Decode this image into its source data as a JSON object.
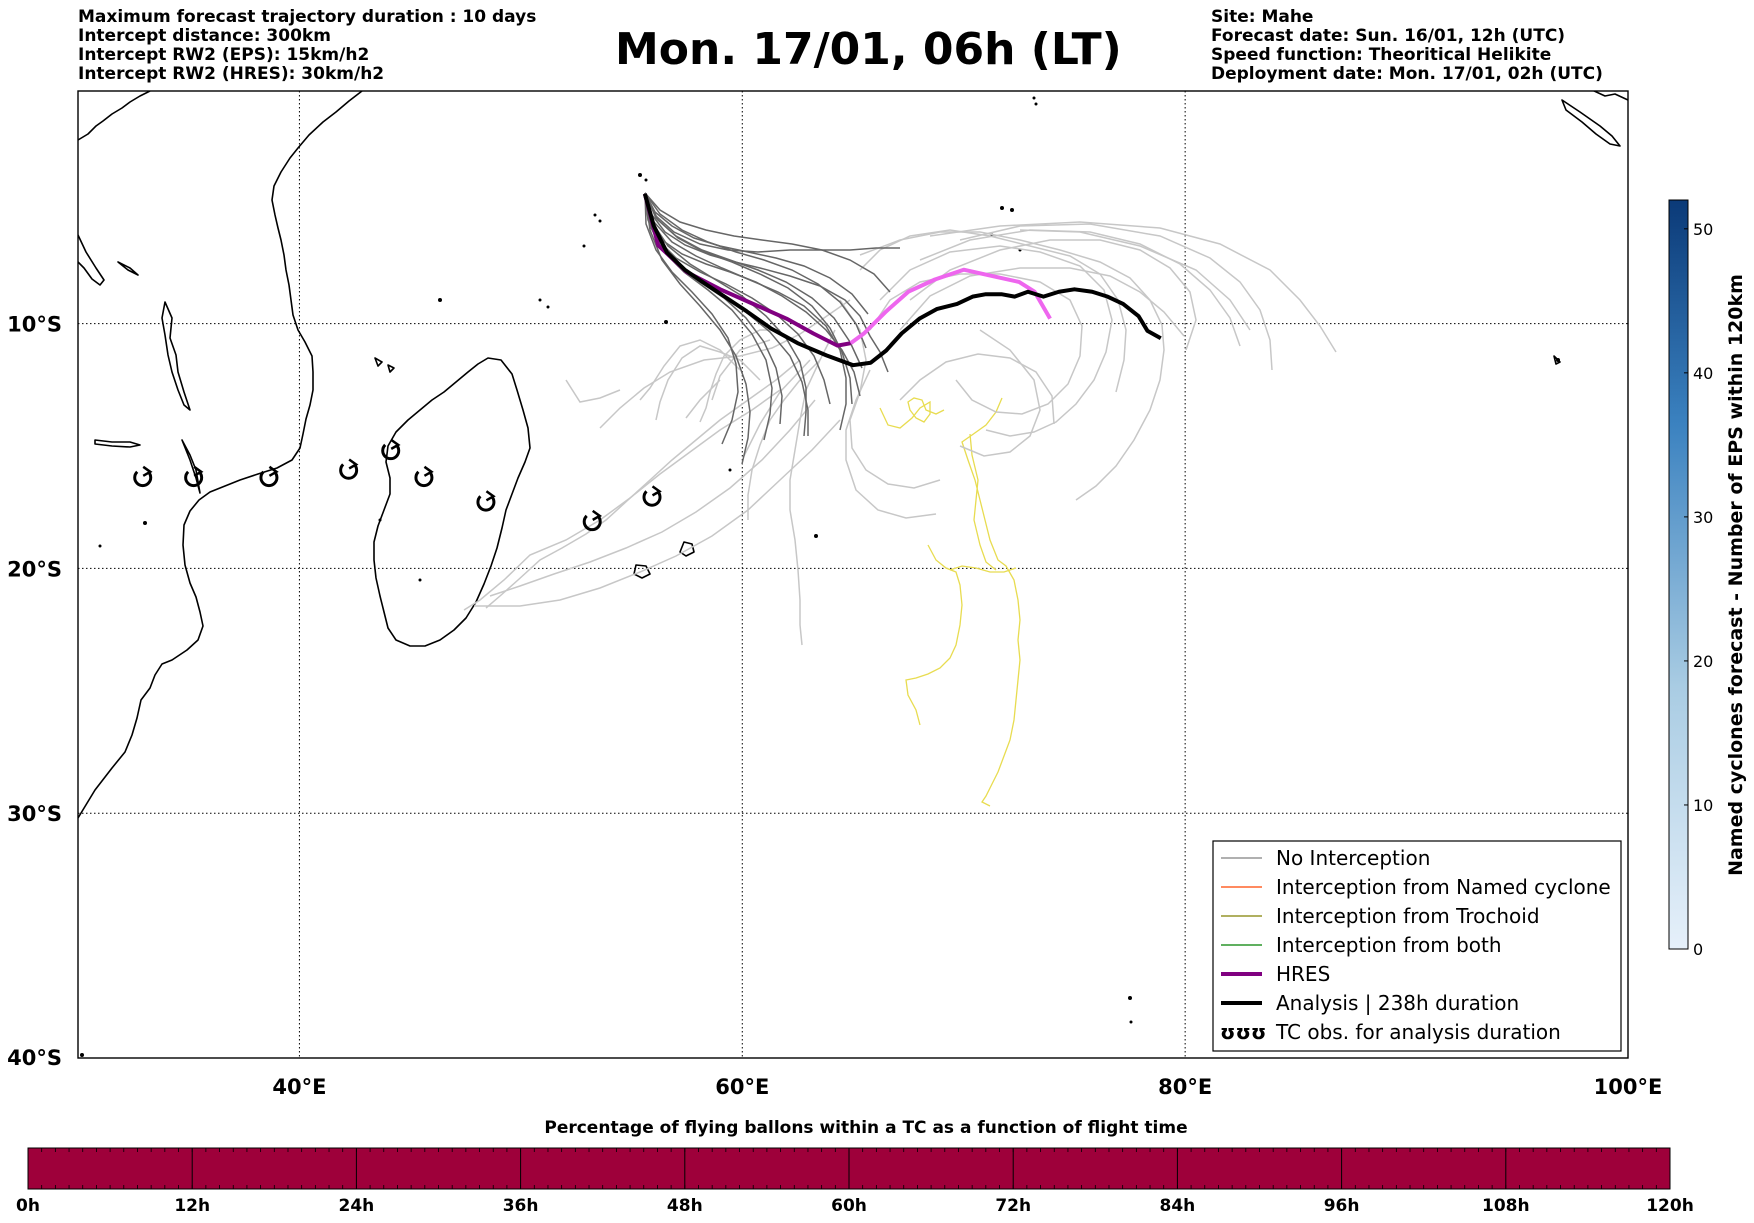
{
  "title": "Mon. 17/01, 06h (LT)",
  "info_left": [
    "Maximum forecast trajectory duration : 10 days",
    "Intercept distance: 300km",
    "Intercept RW2 (EPS):  15km/h2",
    "Intercept RW2 (HRES): 30km/h2"
  ],
  "info_right": [
    "Site: Mahe",
    "Forecast date: Sun. 16/01, 12h (UTC)",
    "Speed function: Theoritical Helikite",
    "Deployment date: Mon. 17/01, 02h (UTC)"
  ],
  "map": {
    "lon_range": [
      30,
      100
    ],
    "lat_range": [
      -40,
      -0.5
    ],
    "lon_ticks": [
      {
        "value": 40,
        "label": "40°E"
      },
      {
        "value": 60,
        "label": "60°E"
      },
      {
        "value": 80,
        "label": "80°E"
      },
      {
        "value": 100,
        "label": "100°E"
      }
    ],
    "lat_ticks": [
      {
        "value": -10,
        "label": "10°S"
      },
      {
        "value": -20,
        "label": "20°S"
      },
      {
        "value": -30,
        "label": "30°S"
      },
      {
        "value": -40,
        "label": "40°S"
      }
    ],
    "grid": true
  },
  "colorbar_right": {
    "label": "Named cyclones forecast - Number of EPS within 120km",
    "min": 0,
    "max": 52,
    "ticks": [
      "0",
      "10",
      "20",
      "30",
      "40",
      "50"
    ],
    "tick_values": [
      0,
      10,
      20,
      30,
      40,
      50
    ],
    "color_low": "#e6f0fa",
    "color_high": "#0b3a78"
  },
  "legend": {
    "placement": "lower-right",
    "items": [
      {
        "label": "No Interception",
        "color": "#808080",
        "style": "thin"
      },
      {
        "label": "Interception from Named cyclone",
        "color": "#ff4500",
        "style": "thin"
      },
      {
        "label": "Interception from Trochoid",
        "color": "#808000",
        "style": "thin"
      },
      {
        "label": "Interception from both",
        "color": "#008000",
        "style": "thin"
      },
      {
        "label": "HRES",
        "color": "#800080",
        "style": "thick"
      },
      {
        "label": "Analysis | 238h duration",
        "color": "#000000",
        "style": "thick"
      },
      {
        "label": "TC obs. for analysis duration",
        "color": "#000000",
        "style": "symbol",
        "symbol": "ʊʊʊ"
      }
    ]
  },
  "tracks": {
    "hres": [
      [
        55.6,
        -4.7
      ],
      [
        56.2,
        -6.8
      ],
      [
        57.5,
        -7.9
      ],
      [
        59,
        -8.6
      ],
      [
        60.5,
        -9.2
      ],
      [
        62,
        -9.8
      ],
      [
        63.2,
        -10.4
      ],
      [
        64.3,
        -10.9
      ],
      [
        64.9,
        -10.8
      ],
      [
        65.5,
        -10.4
      ],
      [
        66.5,
        -9.5
      ],
      [
        67.5,
        -8.7
      ],
      [
        68.7,
        -8.2
      ],
      [
        70,
        -7.8
      ],
      [
        71.5,
        -8.1
      ],
      [
        72.5,
        -8.3
      ],
      [
        73.2,
        -8.7
      ],
      [
        73.9,
        -9.8
      ]
    ],
    "hres_colors": {
      "early": "#800080",
      "late": "#ee66ee"
    },
    "analysis": [
      [
        55.6,
        -4.7
      ],
      [
        56,
        -6
      ],
      [
        56.6,
        -7.1
      ],
      [
        57.4,
        -7.8
      ],
      [
        58.2,
        -8.3
      ],
      [
        59.2,
        -8.9
      ],
      [
        60.2,
        -9.5
      ],
      [
        61.3,
        -10.2
      ],
      [
        62.5,
        -10.8
      ],
      [
        63.8,
        -11.3
      ],
      [
        65,
        -11.7
      ],
      [
        65.8,
        -11.6
      ],
      [
        66.5,
        -11.1
      ],
      [
        67.2,
        -10.4
      ],
      [
        68,
        -9.8
      ],
      [
        68.8,
        -9.4
      ],
      [
        69.7,
        -9.2
      ],
      [
        70.4,
        -8.9
      ],
      [
        71,
        -8.8
      ],
      [
        71.7,
        -8.8
      ],
      [
        72.3,
        -8.9
      ],
      [
        72.9,
        -8.7
      ],
      [
        73.6,
        -8.9
      ],
      [
        74.3,
        -8.7
      ],
      [
        75,
        -8.6
      ],
      [
        75.8,
        -8.7
      ],
      [
        76.5,
        -8.9
      ],
      [
        77.2,
        -9.2
      ],
      [
        77.9,
        -9.7
      ],
      [
        78.3,
        -10.3
      ],
      [
        78.9,
        -10.6
      ]
    ],
    "tc_obs": [
      [
        32.9,
        -16.3
      ],
      [
        35.2,
        -16.3
      ],
      [
        38.6,
        -16.3
      ],
      [
        42.2,
        -16
      ],
      [
        44.1,
        -15.2
      ],
      [
        45.6,
        -16.3
      ],
      [
        48.4,
        -17.3
      ],
      [
        53.2,
        -18.1
      ],
      [
        55.9,
        -17.1
      ]
    ]
  },
  "percentage_bar": {
    "title": "Percentage of flying ballons within a TC as a function of flight time",
    "ticks": [
      "0h",
      "12h",
      "24h",
      "36h",
      "48h",
      "60h",
      "72h",
      "84h",
      "96h",
      "108h",
      "120h"
    ],
    "tick_values": [
      0,
      12,
      24,
      36,
      48,
      60,
      72,
      84,
      96,
      108,
      120
    ],
    "fill_color": "#9e003a"
  }
}
